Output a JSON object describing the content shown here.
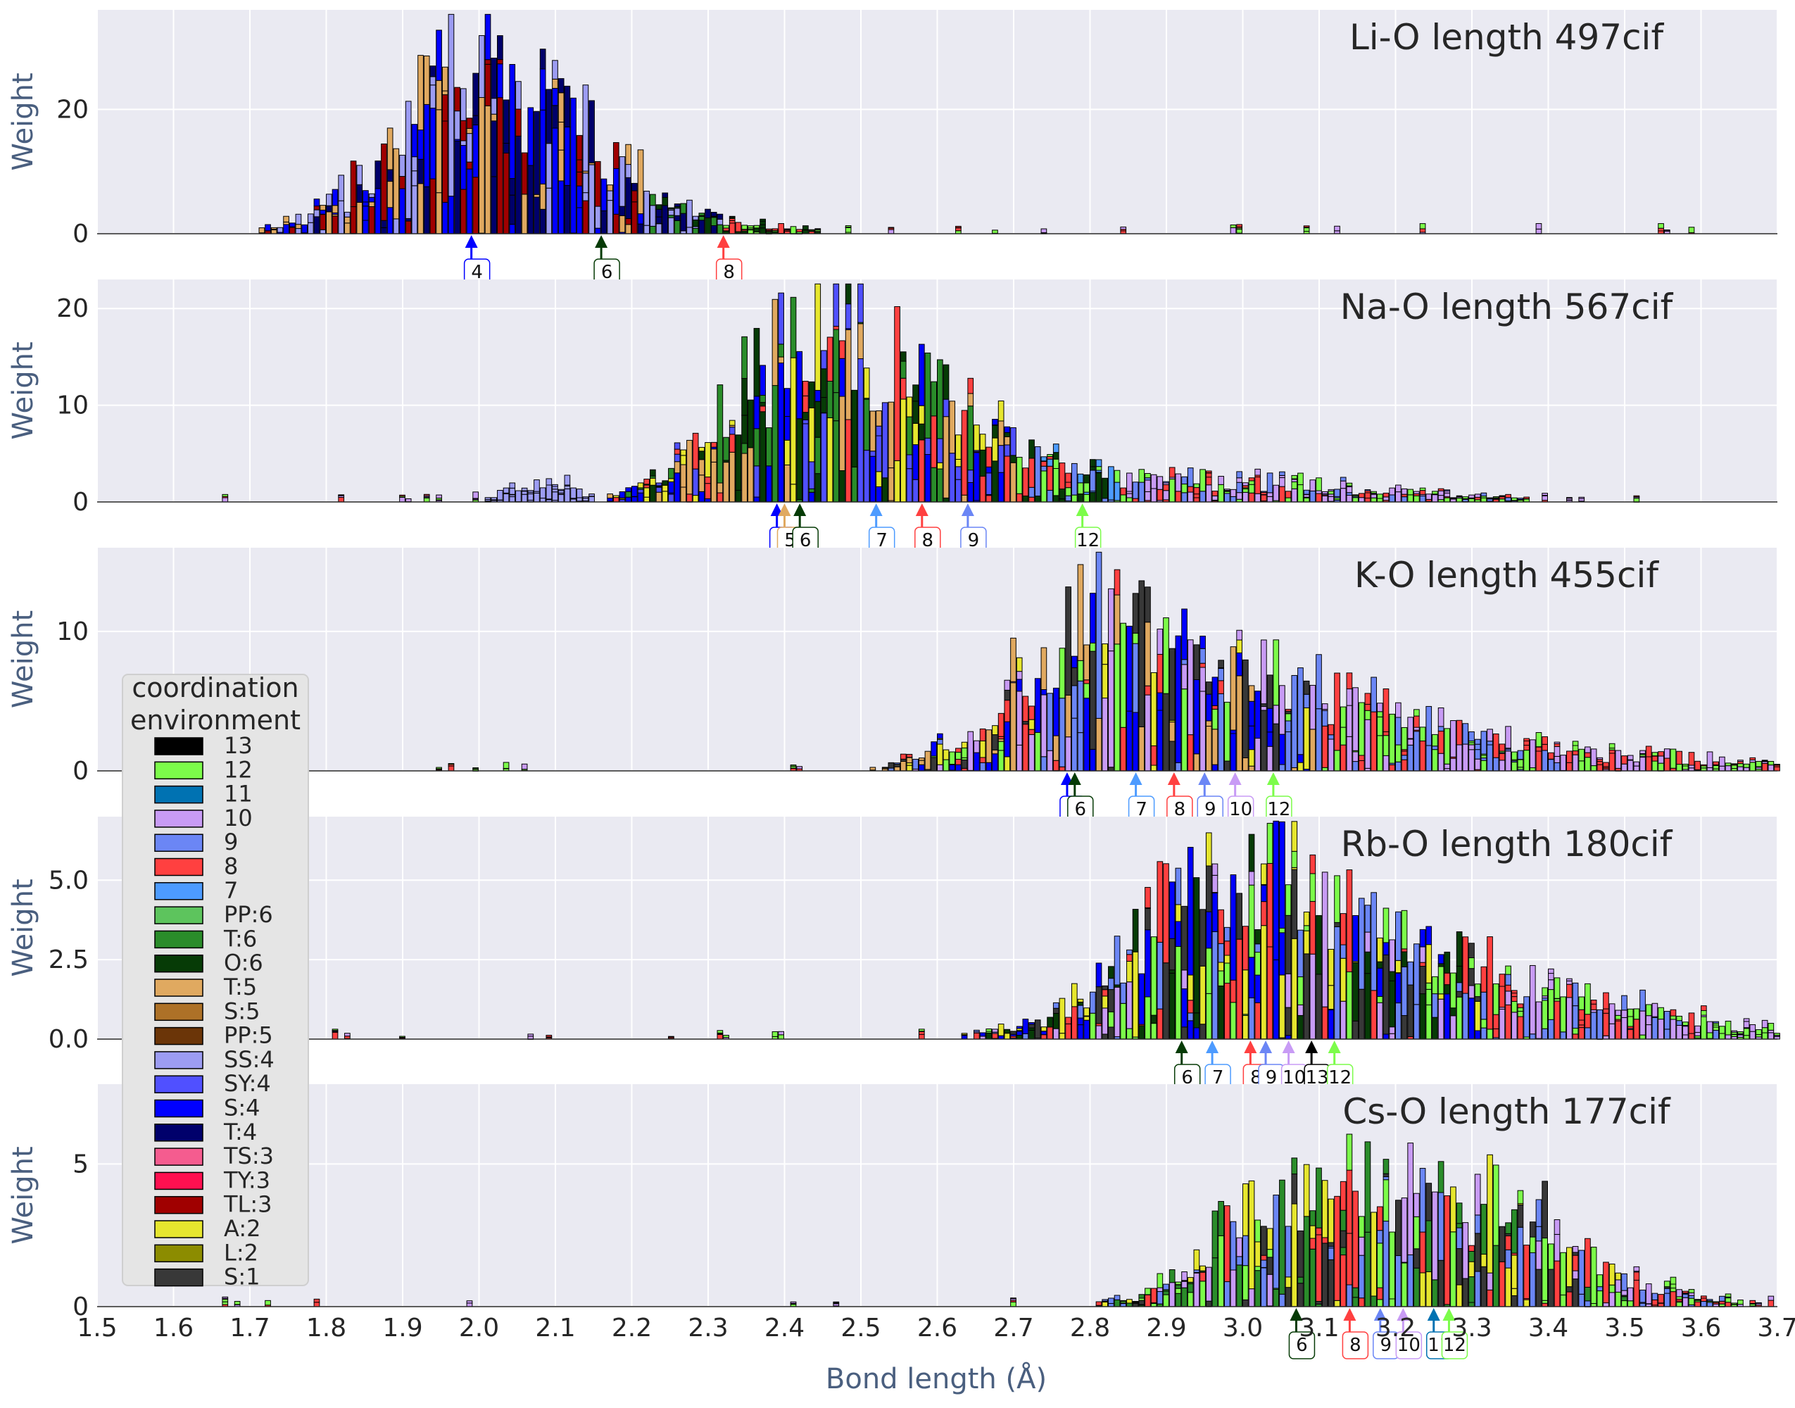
{
  "chart_data": {
    "type": "bar",
    "stacked": true,
    "xlabel": "Bond length (Å)",
    "ylabel": "Weight",
    "xlim": [
      1.5,
      3.7
    ],
    "xticks": [
      "1.5",
      "1.6",
      "1.7",
      "1.8",
      "1.9",
      "2.0",
      "2.1",
      "2.2",
      "2.3",
      "2.4",
      "2.5",
      "2.6",
      "2.7",
      "2.8",
      "2.9",
      "3.0",
      "3.1",
      "3.2",
      "3.3",
      "3.4",
      "3.5",
      "3.6",
      "3.7"
    ],
    "grid": true,
    "legend": {
      "title": "coordination environment",
      "title_lines": [
        "coordination",
        "environment"
      ],
      "placement": "left",
      "entries": [
        {
          "label": "13",
          "color": "#000000"
        },
        {
          "label": "12",
          "color": "#7cfc4a"
        },
        {
          "label": "11",
          "color": "#0072b2"
        },
        {
          "label": "10",
          "color": "#c89bf5"
        },
        {
          "label": "9",
          "color": "#6b86f5"
        },
        {
          "label": "8",
          "color": "#ff4040"
        },
        {
          "label": "7",
          "color": "#4d9bff"
        },
        {
          "label": "PP:6",
          "color": "#5dc45d"
        },
        {
          "label": "T:6",
          "color": "#2a8c2a"
        },
        {
          "label": "O:6",
          "color": "#063b06"
        },
        {
          "label": "T:5",
          "color": "#e0a960"
        },
        {
          "label": "S:5",
          "color": "#ad7127"
        },
        {
          "label": "PP:5",
          "color": "#6b3508"
        },
        {
          "label": "SS:4",
          "color": "#9c9cf2"
        },
        {
          "label": "SY:4",
          "color": "#5050ff"
        },
        {
          "label": "S:4",
          "color": "#0000ff"
        },
        {
          "label": "T:4",
          "color": "#00006b"
        },
        {
          "label": "TS:3",
          "color": "#f55c8f"
        },
        {
          "label": "TY:3",
          "color": "#ff1050"
        },
        {
          "label": "TL:3",
          "color": "#a00000"
        },
        {
          "label": "A:2",
          "color": "#e6e62e"
        },
        {
          "label": "L:2",
          "color": "#8c8c00"
        },
        {
          "label": "S:1",
          "color": "#383838"
        }
      ]
    },
    "panels": [
      {
        "title": "Li-O length 497cif",
        "ylim": [
          0,
          36
        ],
        "yticks": [
          {
            "value": 0,
            "label": "0"
          },
          {
            "value": 20,
            "label": "20"
          }
        ],
        "markers": [
          {
            "x": 1.99,
            "label": "4",
            "color": "#0000ff"
          },
          {
            "x": 2.16,
            "label": "6",
            "color": "#063b06"
          },
          {
            "x": 2.32,
            "label": "8",
            "color": "#ff4040"
          }
        ],
        "peaks": [
          {
            "center": 1.96,
            "width": 0.1,
            "height": 19,
            "mix": [
              "T:4",
              "S:4",
              "SS:4",
              "TL:3",
              "T:5"
            ]
          },
          {
            "center": 1.955,
            "width": 0.006,
            "height": 17,
            "mix": [
              "T:4",
              "SS:4"
            ]
          },
          {
            "center": 2.1,
            "width": 0.09,
            "height": 14,
            "mix": [
              "O:6",
              "T:6",
              "SS:4",
              "T:4"
            ]
          },
          {
            "center": 2.3,
            "width": 0.1,
            "height": 2,
            "mix": [
              "O:6",
              "12",
              "8"
            ]
          }
        ]
      },
      {
        "title": "Na-O length 567cif",
        "ylim": [
          0,
          23
        ],
        "yticks": [
          {
            "value": 0,
            "label": "0"
          },
          {
            "value": 10,
            "label": "10"
          },
          {
            "value": 20,
            "label": "20"
          }
        ],
        "markers": [
          {
            "x": 2.39,
            "label": "4",
            "color": "#0000ff"
          },
          {
            "x": 2.4,
            "label": "5",
            "color": "#e0a960"
          },
          {
            "x": 2.42,
            "label": "6",
            "color": "#063b06"
          },
          {
            "x": 2.52,
            "label": "7",
            "color": "#4d9bff"
          },
          {
            "x": 2.58,
            "label": "8",
            "color": "#ff4040"
          },
          {
            "x": 2.64,
            "label": "9",
            "color": "#6b86f5"
          },
          {
            "x": 2.79,
            "label": "12",
            "color": "#7cfc4a"
          }
        ],
        "peaks": [
          {
            "center": 2.43,
            "width": 0.1,
            "height": 18,
            "mix": [
              "O:6",
              "8",
              "T:5",
              "SY:4",
              "S:4",
              "A:2",
              "T:6"
            ]
          },
          {
            "center": 2.62,
            "width": 0.1,
            "height": 6,
            "mix": [
              "8",
              "9",
              "7",
              "O:6",
              "12"
            ]
          },
          {
            "center": 2.9,
            "width": 0.25,
            "height": 2.5,
            "mix": [
              "8",
              "12",
              "9",
              "10"
            ]
          },
          {
            "center": 2.08,
            "width": 0.04,
            "height": 2.5,
            "mix": [
              "SS:4"
            ]
          }
        ]
      },
      {
        "title": "K-O length 455cif",
        "ylim": [
          0,
          16
        ],
        "yticks": [
          {
            "value": 0,
            "label": "0"
          },
          {
            "value": 10,
            "label": "10"
          }
        ],
        "markers": [
          {
            "x": 2.77,
            "label": "4",
            "color": "#0000ff"
          },
          {
            "x": 2.78,
            "label": "6",
            "color": "#063b06"
          },
          {
            "x": 2.86,
            "label": "7",
            "color": "#4d9bff"
          },
          {
            "x": 2.91,
            "label": "8",
            "color": "#ff4040"
          },
          {
            "x": 2.95,
            "label": "9",
            "color": "#6b86f5"
          },
          {
            "x": 2.99,
            "label": "10",
            "color": "#c89bf5"
          },
          {
            "x": 3.04,
            "label": "12",
            "color": "#7cfc4a"
          }
        ],
        "peaks": [
          {
            "center": 2.8,
            "width": 0.11,
            "height": 10,
            "mix": [
              "12",
              "10",
              "8",
              "9",
              "T:5",
              "S:1",
              "A:2",
              "S:4"
            ]
          },
          {
            "center": 3.05,
            "width": 0.16,
            "height": 5,
            "mix": [
              "9",
              "12",
              "10",
              "8"
            ]
          },
          {
            "center": 3.35,
            "width": 0.25,
            "height": 1.5,
            "mix": [
              "10",
              "12",
              "8"
            ]
          }
        ]
      },
      {
        "title": "Rb-O length 180cif",
        "ylim": [
          0,
          7
        ],
        "yticks": [
          {
            "value": 0,
            "label": "0.0"
          },
          {
            "value": 2.5,
            "label": "2.5"
          },
          {
            "value": 5,
            "label": "5.0"
          }
        ],
        "markers": [
          {
            "x": 2.92,
            "label": "6",
            "color": "#063b06"
          },
          {
            "x": 2.96,
            "label": "7",
            "color": "#4d9bff"
          },
          {
            "x": 3.01,
            "label": "8",
            "color": "#ff4040"
          },
          {
            "x": 3.03,
            "label": "9",
            "color": "#6b86f5"
          },
          {
            "x": 3.06,
            "label": "10",
            "color": "#c89bf5"
          },
          {
            "x": 3.09,
            "label": "13",
            "color": "#000000"
          },
          {
            "x": 3.12,
            "label": "12",
            "color": "#7cfc4a"
          }
        ],
        "peaks": [
          {
            "center": 2.97,
            "width": 0.13,
            "height": 4.2,
            "mix": [
              "12",
              "10",
              "9",
              "8",
              "A:2",
              "S:1",
              "O:6",
              "S:4"
            ]
          },
          {
            "center": 3.2,
            "width": 0.18,
            "height": 2.3,
            "mix": [
              "12",
              "10",
              "9",
              "8"
            ]
          },
          {
            "center": 3.5,
            "width": 0.2,
            "height": 0.6,
            "mix": [
              "12",
              "10"
            ]
          }
        ]
      },
      {
        "title": "Cs-O length 177cif",
        "ylim": [
          0,
          7.8
        ],
        "yticks": [
          {
            "value": 0,
            "label": "0"
          },
          {
            "value": 5,
            "label": "5"
          }
        ],
        "markers": [
          {
            "x": 3.07,
            "label": "6",
            "color": "#063b06"
          },
          {
            "x": 3.14,
            "label": "8",
            "color": "#ff4040"
          },
          {
            "x": 3.18,
            "label": "9",
            "color": "#6b86f5"
          },
          {
            "x": 3.21,
            "label": "10",
            "color": "#c89bf5"
          },
          {
            "x": 3.25,
            "label": "11",
            "color": "#0072b2"
          },
          {
            "x": 3.27,
            "label": "12",
            "color": "#7cfc4a"
          }
        ],
        "peaks": [
          {
            "center": 3.15,
            "width": 0.14,
            "height": 3.4,
            "mix": [
              "12",
              "10",
              "9",
              "8",
              "A:2",
              "S:1",
              "T:6"
            ]
          },
          {
            "center": 3.35,
            "width": 0.14,
            "height": 2.2,
            "mix": [
              "12",
              "10",
              "9",
              "8"
            ]
          },
          {
            "center": 3.0,
            "width": 0.06,
            "height": 1.4,
            "mix": [
              "A:2",
              "8",
              "S:1"
            ]
          }
        ]
      }
    ]
  }
}
